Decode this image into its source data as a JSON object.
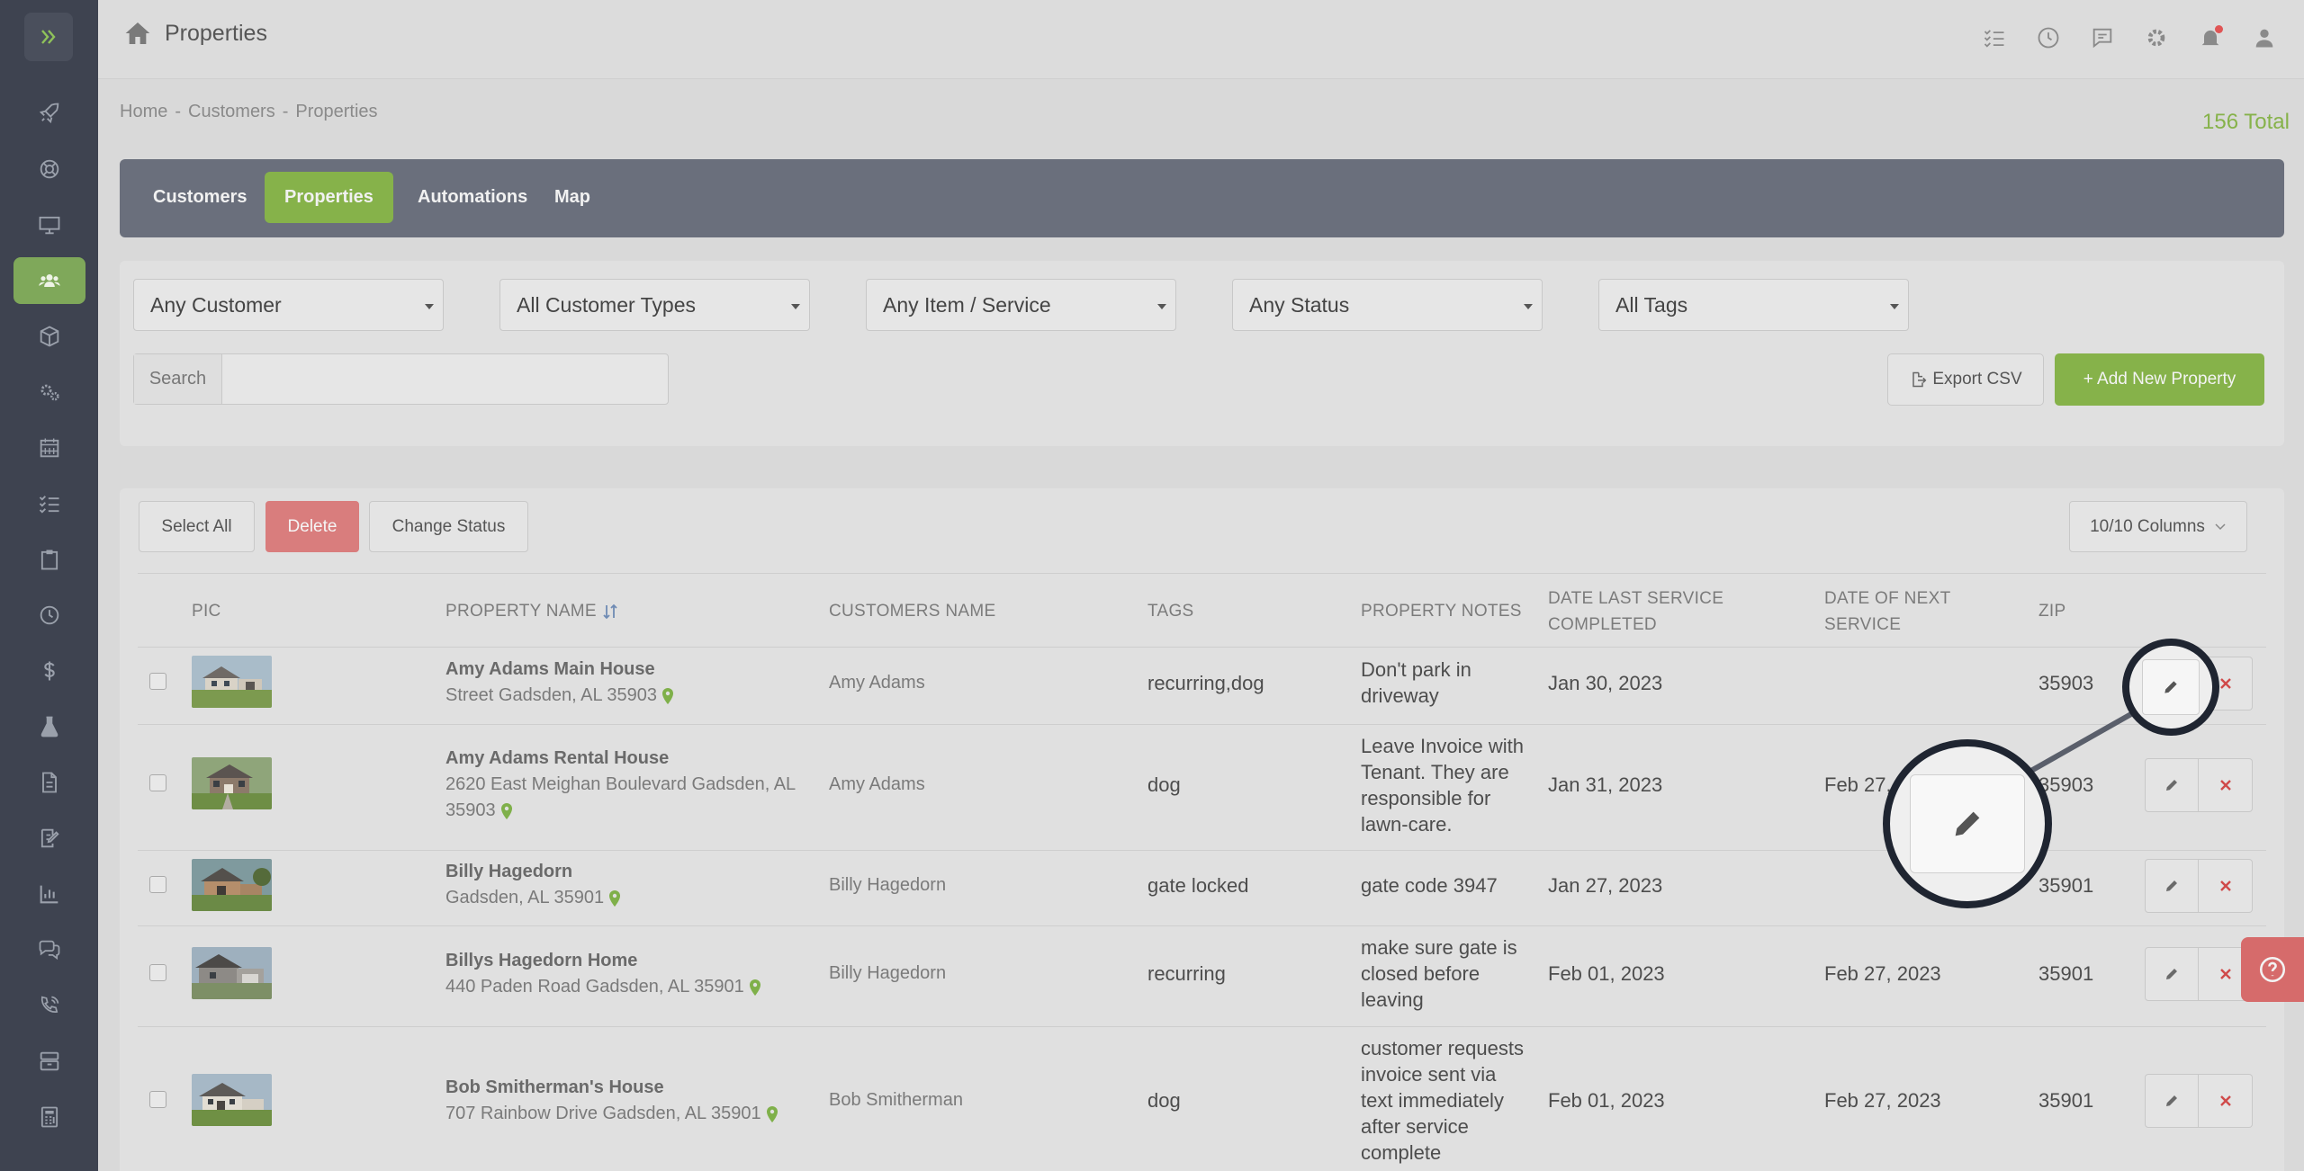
{
  "header": {
    "title": "Properties"
  },
  "breadcrumb": {
    "items": [
      "Home",
      "Customers",
      "Properties"
    ],
    "separator": "-"
  },
  "total_label": "156 Total",
  "tabs": [
    {
      "label": "Customers",
      "active": false
    },
    {
      "label": "Properties",
      "active": true
    },
    {
      "label": "Automations",
      "active": false
    },
    {
      "label": "Map",
      "active": false
    }
  ],
  "filters": {
    "customer": "Any Customer",
    "customer_type": "All Customer Types",
    "item_service": "Any Item / Service",
    "status": "Any Status",
    "tags": "All Tags"
  },
  "search": {
    "label": "Search",
    "value": ""
  },
  "buttons": {
    "export_csv": "Export CSV",
    "add_new_property": "+ Add New Property",
    "select_all": "Select All",
    "delete": "Delete",
    "change_status": "Change Status",
    "columns": "10/10 Columns"
  },
  "table": {
    "headers": {
      "pic": "PIC",
      "property_name": "PROPERTY NAME",
      "customers_name": "CUSTOMERS NAME",
      "tags": "TAGS",
      "property_notes": "PROPERTY NOTES",
      "date_last_service_1": "DATE LAST SERVICE",
      "date_last_service_2": "COMPLETED",
      "date_next_service_1": "DATE OF NEXT",
      "date_next_service_2": "SERVICE",
      "zip": "ZIP"
    },
    "rows": [
      {
        "name": "Amy Adams Main House",
        "address": "Street Gadsden, AL 35903",
        "customer": "Amy Adams",
        "tags": "recurring,dog",
        "notes": [
          "Don't park in",
          "driveway"
        ],
        "last_service": "Jan 30, 2023",
        "next_service": "",
        "zip": "35903"
      },
      {
        "name": "Amy Adams Rental House",
        "address_1": "2620 East Meighan Boulevard Gadsden, AL",
        "address_2": "35903",
        "customer": "Amy Adams",
        "tags": "dog",
        "notes": [
          "Leave Invoice with",
          "Tenant. They are",
          "responsible for",
          "lawn-care."
        ],
        "last_service": "Jan 31, 2023",
        "next_service": "Feb 27,",
        "zip": "35903"
      },
      {
        "name": "Billy Hagedorn",
        "address": "Gadsden, AL 35901",
        "customer": "Billy Hagedorn",
        "tags": "gate locked",
        "notes": [
          "gate code 3947"
        ],
        "last_service": "Jan 27, 2023",
        "next_service": "",
        "zip": "35901"
      },
      {
        "name": "Billys Hagedorn Home",
        "address": "440 Paden Road Gadsden, AL 35901",
        "customer": "Billy Hagedorn",
        "tags": "recurring",
        "notes": [
          "make sure gate is",
          "closed before",
          "leaving"
        ],
        "last_service": "Feb 01, 2023",
        "next_service": "Feb 27, 2023",
        "zip": "35901"
      },
      {
        "name": "Bob Smitherman's House",
        "address": "707 Rainbow Drive Gadsden, AL 35901",
        "customer": "Bob Smitherman",
        "tags": "dog",
        "notes": [
          "customer requests",
          "invoice sent via",
          "text immediately",
          "after service",
          "complete"
        ],
        "last_service": "Feb 01, 2023",
        "next_service": "Feb 27, 2023",
        "zip": "35901"
      }
    ]
  },
  "icons": {
    "sidebar": [
      "expand-icon",
      "rocket-icon",
      "support-icon",
      "monitor-icon",
      "users-icon",
      "box-icon",
      "gears-icon",
      "calendar-icon",
      "checklist-icon",
      "clipboard-icon",
      "clock-icon",
      "dollar-icon",
      "flask-icon",
      "document-icon",
      "signature-icon",
      "chart-icon",
      "chat-icon",
      "phone-icon",
      "archive-icon",
      "calculator-icon"
    ],
    "header": [
      "checklist-icon",
      "clock-icon",
      "message-icon",
      "gear-icon",
      "bell-icon",
      "user-icon"
    ]
  },
  "colors": {
    "accent_green": "#86b24a",
    "delete_red": "#d97d7d",
    "sidebar_bg": "#3e4350",
    "tabbar_bg": "#6a6f7c",
    "pin_green": "#7fb04a"
  }
}
